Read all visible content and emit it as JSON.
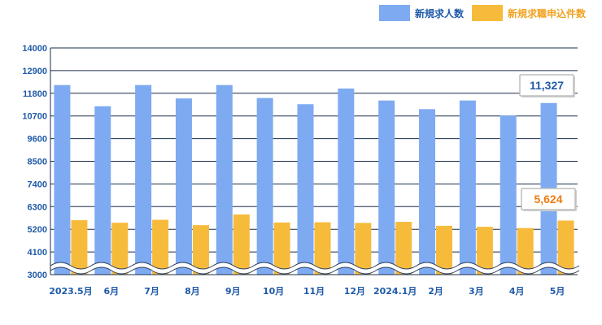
{
  "legend": {
    "series_a_label": "新規求人数",
    "series_b_label": "新規求職申込件数"
  },
  "colors": {
    "series_a": "#7eaaf2",
    "series_b": "#f7bb3c",
    "axis_text": "#1f5aa8",
    "callout_a_text": "#1f5aa8",
    "callout_b_text": "#f07a10"
  },
  "callouts": {
    "series_a_last": "11,327",
    "series_b_last": "5,624"
  },
  "chart_data": {
    "type": "bar",
    "categories": [
      "2023.5月",
      "6月",
      "7月",
      "8月",
      "9月",
      "10月",
      "11月",
      "12月",
      "2024.1月",
      "2月",
      "3月",
      "4月",
      "5月"
    ],
    "series": [
      {
        "name": "新規求人数",
        "values": [
          12200,
          11170,
          12200,
          11550,
          12200,
          11570,
          11270,
          12030,
          11450,
          11030,
          11450,
          10720,
          11327
        ]
      },
      {
        "name": "新規求職申込件数",
        "values": [
          5640,
          5520,
          5660,
          5400,
          5920,
          5530,
          5540,
          5510,
          5560,
          5370,
          5320,
          5260,
          5624
        ]
      }
    ],
    "yticks": [
      3000,
      4100,
      5200,
      6300,
      7400,
      8500,
      9600,
      10700,
      11800,
      12900,
      14000
    ],
    "ylim": [
      3000,
      14000
    ],
    "axis_break": true,
    "grid": true,
    "legend_position": "top-right"
  }
}
